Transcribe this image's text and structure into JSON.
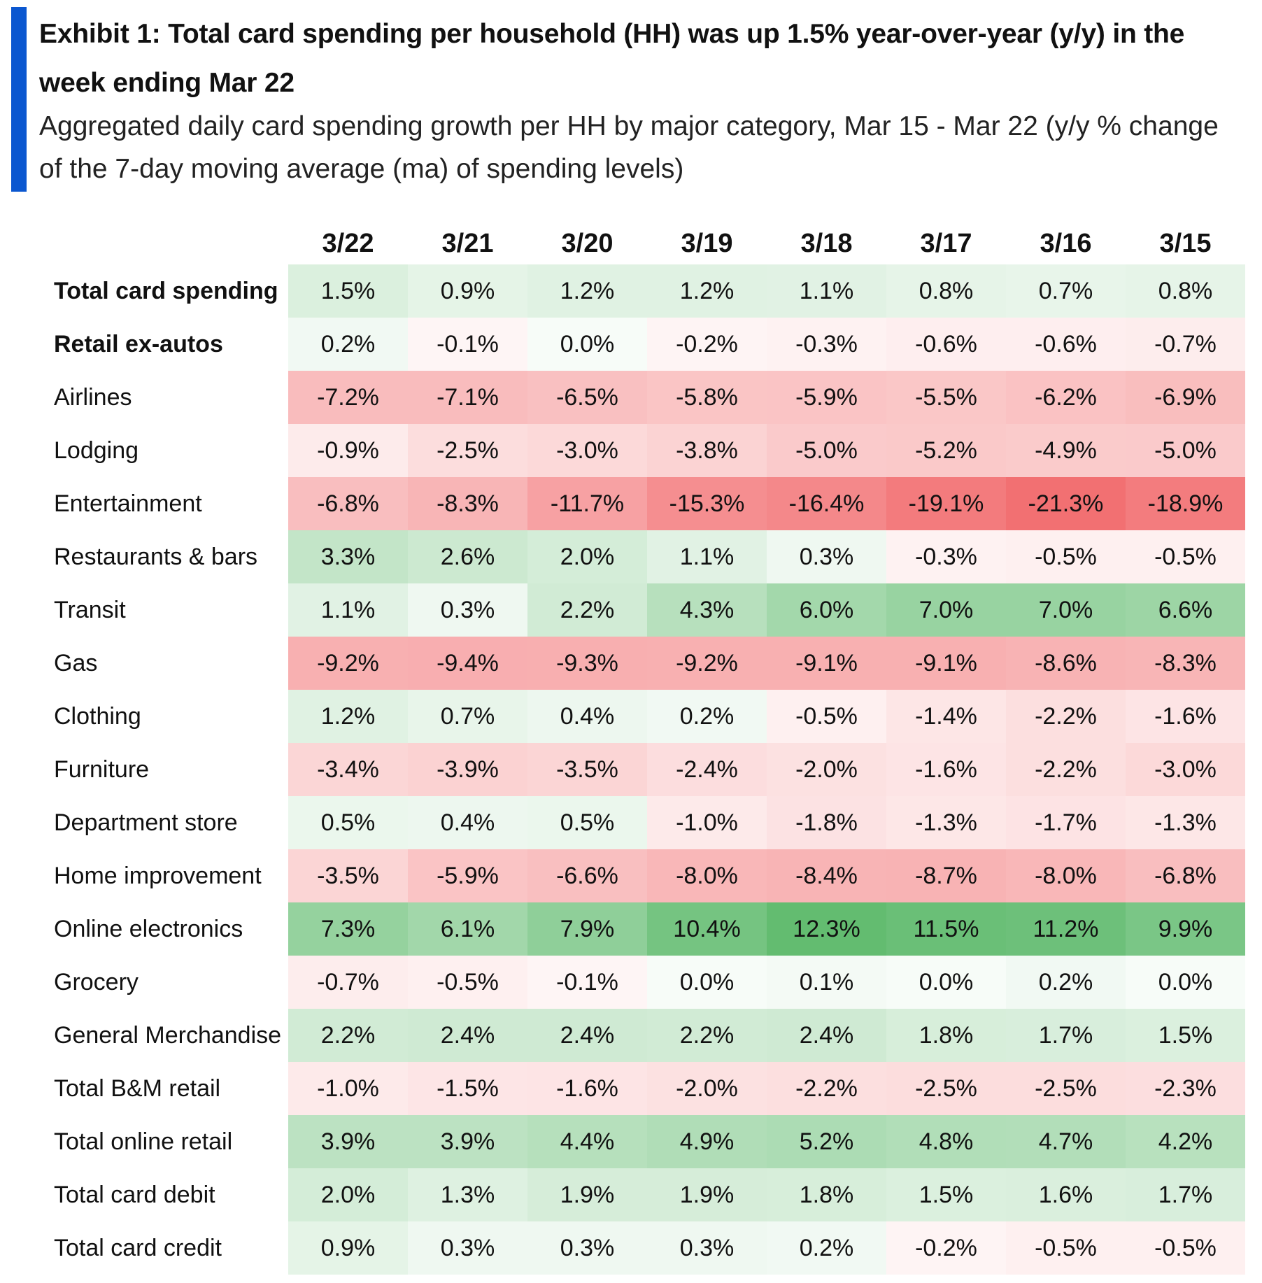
{
  "title": "Exhibit 1: Total card spending per household (HH) was up 1.5% year-over-year (y/y) in the week ending Mar 22",
  "subtitle": "Aggregated daily card spending growth per HH by major category, Mar 15 - Mar 22 (y/y % change of the 7-day moving average (ma) of spending levels)",
  "colors": {
    "accent": "#0b57d0",
    "positive_max": "#5cb96a",
    "negative_max": "#f26d6f",
    "neutral": "#ffffff"
  },
  "chart_data": {
    "type": "heatmap",
    "unit": "%",
    "columns": [
      "3/22",
      "3/21",
      "3/20",
      "3/19",
      "3/18",
      "3/17",
      "3/16",
      "3/15"
    ],
    "rows": [
      {
        "label": "Total card spending",
        "bold": true,
        "values": [
          1.5,
          0.9,
          1.2,
          1.2,
          1.1,
          0.8,
          0.7,
          0.8
        ]
      },
      {
        "label": "Retail ex-autos",
        "bold": true,
        "values": [
          0.2,
          -0.1,
          0.0,
          -0.2,
          -0.3,
          -0.6,
          -0.6,
          -0.7
        ]
      },
      {
        "label": "Airlines",
        "bold": false,
        "values": [
          -7.2,
          -7.1,
          -6.5,
          -5.8,
          -5.9,
          -5.5,
          -6.2,
          -6.9
        ]
      },
      {
        "label": "Lodging",
        "bold": false,
        "values": [
          -0.9,
          -2.5,
          -3.0,
          -3.8,
          -5.0,
          -5.2,
          -4.9,
          -5.0
        ]
      },
      {
        "label": "Entertainment",
        "bold": false,
        "values": [
          -6.8,
          -8.3,
          -11.7,
          -15.3,
          -16.4,
          -19.1,
          -21.3,
          -18.9
        ]
      },
      {
        "label": "Restaurants & bars",
        "bold": false,
        "values": [
          3.3,
          2.6,
          2.0,
          1.1,
          0.3,
          -0.3,
          -0.5,
          -0.5
        ]
      },
      {
        "label": "Transit",
        "bold": false,
        "values": [
          1.1,
          0.3,
          2.2,
          4.3,
          6.0,
          7.0,
          7.0,
          6.6
        ]
      },
      {
        "label": "Gas",
        "bold": false,
        "values": [
          -9.2,
          -9.4,
          -9.3,
          -9.2,
          -9.1,
          -9.1,
          -8.6,
          -8.3
        ]
      },
      {
        "label": "Clothing",
        "bold": false,
        "values": [
          1.2,
          0.7,
          0.4,
          0.2,
          -0.5,
          -1.4,
          -2.2,
          -1.6
        ]
      },
      {
        "label": "Furniture",
        "bold": false,
        "values": [
          -3.4,
          -3.9,
          -3.5,
          -2.4,
          -2.0,
          -1.6,
          -2.2,
          -3.0
        ]
      },
      {
        "label": "Department store",
        "bold": false,
        "values": [
          0.5,
          0.4,
          0.5,
          -1.0,
          -1.8,
          -1.3,
          -1.7,
          -1.3
        ]
      },
      {
        "label": "Home improvement",
        "bold": false,
        "values": [
          -3.5,
          -5.9,
          -6.6,
          -8.0,
          -8.4,
          -8.7,
          -8.0,
          -6.8
        ]
      },
      {
        "label": "Online electronics",
        "bold": false,
        "values": [
          7.3,
          6.1,
          7.9,
          10.4,
          12.3,
          11.5,
          11.2,
          9.9
        ]
      },
      {
        "label": "Grocery",
        "bold": false,
        "values": [
          -0.7,
          -0.5,
          -0.1,
          0.0,
          0.1,
          0.0,
          0.2,
          0.0
        ]
      },
      {
        "label": "General Merchandise",
        "bold": false,
        "values": [
          2.2,
          2.4,
          2.4,
          2.2,
          2.4,
          1.8,
          1.7,
          1.5
        ]
      },
      {
        "label": "Total B&M retail",
        "bold": false,
        "values": [
          -1.0,
          -1.5,
          -1.6,
          -2.0,
          -2.2,
          -2.5,
          -2.5,
          -2.3
        ]
      },
      {
        "label": "Total online retail",
        "bold": false,
        "values": [
          3.9,
          3.9,
          4.4,
          4.9,
          5.2,
          4.8,
          4.7,
          4.2
        ]
      },
      {
        "label": "Total card debit",
        "bold": false,
        "values": [
          2.0,
          1.3,
          1.9,
          1.9,
          1.8,
          1.5,
          1.6,
          1.7
        ]
      },
      {
        "label": "Total card credit",
        "bold": false,
        "values": [
          0.9,
          0.3,
          0.3,
          0.3,
          0.2,
          -0.2,
          -0.5,
          -0.5
        ]
      }
    ]
  }
}
